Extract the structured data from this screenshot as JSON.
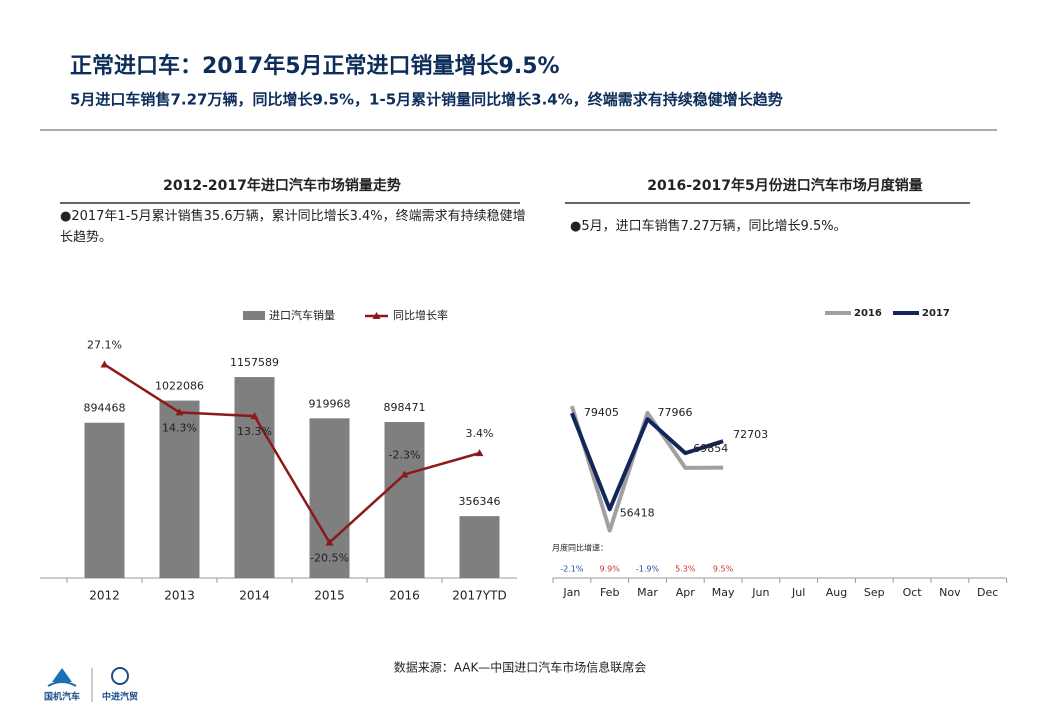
{
  "header": {
    "title": "正常进口车：2017年5月正常进口销量增长9.5%",
    "subtitle": "5月进口车销售7.27万辆，同比增长9.5%，1-5月累计销量同比增长3.4%，终端需求有持续稳健增长趋势"
  },
  "chart_data": [
    {
      "type": "bar",
      "title": "2012-2017年进口汽车市场销量走势",
      "note": "●2017年1-5月累计销售35.6万辆，累计同比增长3.4%，终端需求有持续稳健增长趋势。",
      "categories": [
        "2012",
        "2013",
        "2014",
        "2015",
        "2016",
        "2017YTD"
      ],
      "series": [
        {
          "name": "进口汽车销量",
          "color": "#7f7f7f",
          "values": [
            894468,
            1022086,
            1157589,
            919968,
            898471,
            356346
          ]
        },
        {
          "name": "同比增长率",
          "type": "line",
          "axis": "y2",
          "color": "#8b1a1a",
          "values": [
            27.1,
            14.3,
            13.3,
            -20.5,
            -2.3,
            3.4
          ],
          "value_labels": [
            "27.1%",
            "14.3%",
            "13.3%",
            "-20.5%",
            "-2.3%",
            "3.4%"
          ]
        }
      ],
      "ylim": [
        0,
        1400000
      ],
      "y2lim": [
        -30,
        35
      ]
    },
    {
      "type": "line",
      "title": "2016-2017年5月份进口汽车市场月度销量",
      "note": "●5月，进口车销售7.27万辆，同比增长9.5%。",
      "categories": [
        "Jan",
        "Feb",
        "Mar",
        "Apr",
        "May",
        "Jun",
        "Jul",
        "Aug",
        "Sep",
        "Oct",
        "Nov",
        "Dec"
      ],
      "series": [
        {
          "name": "2016",
          "color": "#a0a0a0",
          "values": [
            81100,
            51336,
            79476,
            66338,
            66395,
            null,
            null,
            null,
            null,
            null,
            null,
            null
          ]
        },
        {
          "name": "2017",
          "color": "#13255a",
          "values": [
            79405,
            56418,
            77966,
            69854,
            72703,
            null,
            null,
            null,
            null,
            null,
            null,
            null
          ]
        }
      ],
      "ylim": [
        40000,
        100000
      ],
      "annotation": {
        "label": "月度同比增速：",
        "values": [
          -2.1,
          9.9,
          -1.9,
          5.3,
          9.5
        ],
        "value_labels": [
          "-2.1%",
          "9.9%",
          "-1.9%",
          "5.3%",
          "9.5%"
        ]
      }
    }
  ],
  "footer": {
    "source": "数据来源：AAK—中国进口汽车市场信息联席会",
    "logos": [
      "国机汽车",
      "中进汽贸"
    ]
  }
}
